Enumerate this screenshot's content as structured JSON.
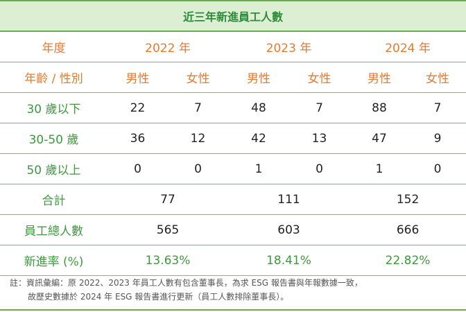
{
  "title": "近三年新進員工人數",
  "header_year": {
    "label": "年度",
    "years": [
      "2022 年",
      "2023 年",
      "2024 年"
    ]
  },
  "header_gender": {
    "label": "年齡 / 性別",
    "male": "男性",
    "female": "女性"
  },
  "rows": [
    {
      "label": "30 歲以下",
      "values": [
        "22",
        "7",
        "48",
        "7",
        "88",
        "7"
      ]
    },
    {
      "label": "30-50 歲",
      "values": [
        "36",
        "12",
        "42",
        "13",
        "47",
        "9"
      ]
    },
    {
      "label": "50 歲以上",
      "values": [
        "0",
        "0",
        "1",
        "0",
        "1",
        "0"
      ]
    }
  ],
  "total": {
    "label": "合計",
    "values": [
      "77",
      "111",
      "152"
    ]
  },
  "employees": {
    "label": "員工總人數",
    "values": [
      "565",
      "603",
      "666"
    ]
  },
  "rate": {
    "label": "新進率 (%)",
    "values": [
      "13.63%",
      "18.41%",
      "22.82%"
    ]
  },
  "note": {
    "line1": "註：資訊彙編：原 2022、2023 年員工人數有包含董事長，為求 ESG 報告書與年報數據一致，",
    "line2": "故歷史數據於 2024 年 ESG 報告書進行更新（員工人數排除董事長）。"
  },
  "colors": {
    "green": "#3c9a3c",
    "orange": "#e8792b",
    "title_bg": "#dcefd3",
    "border": "#6cab4c"
  }
}
